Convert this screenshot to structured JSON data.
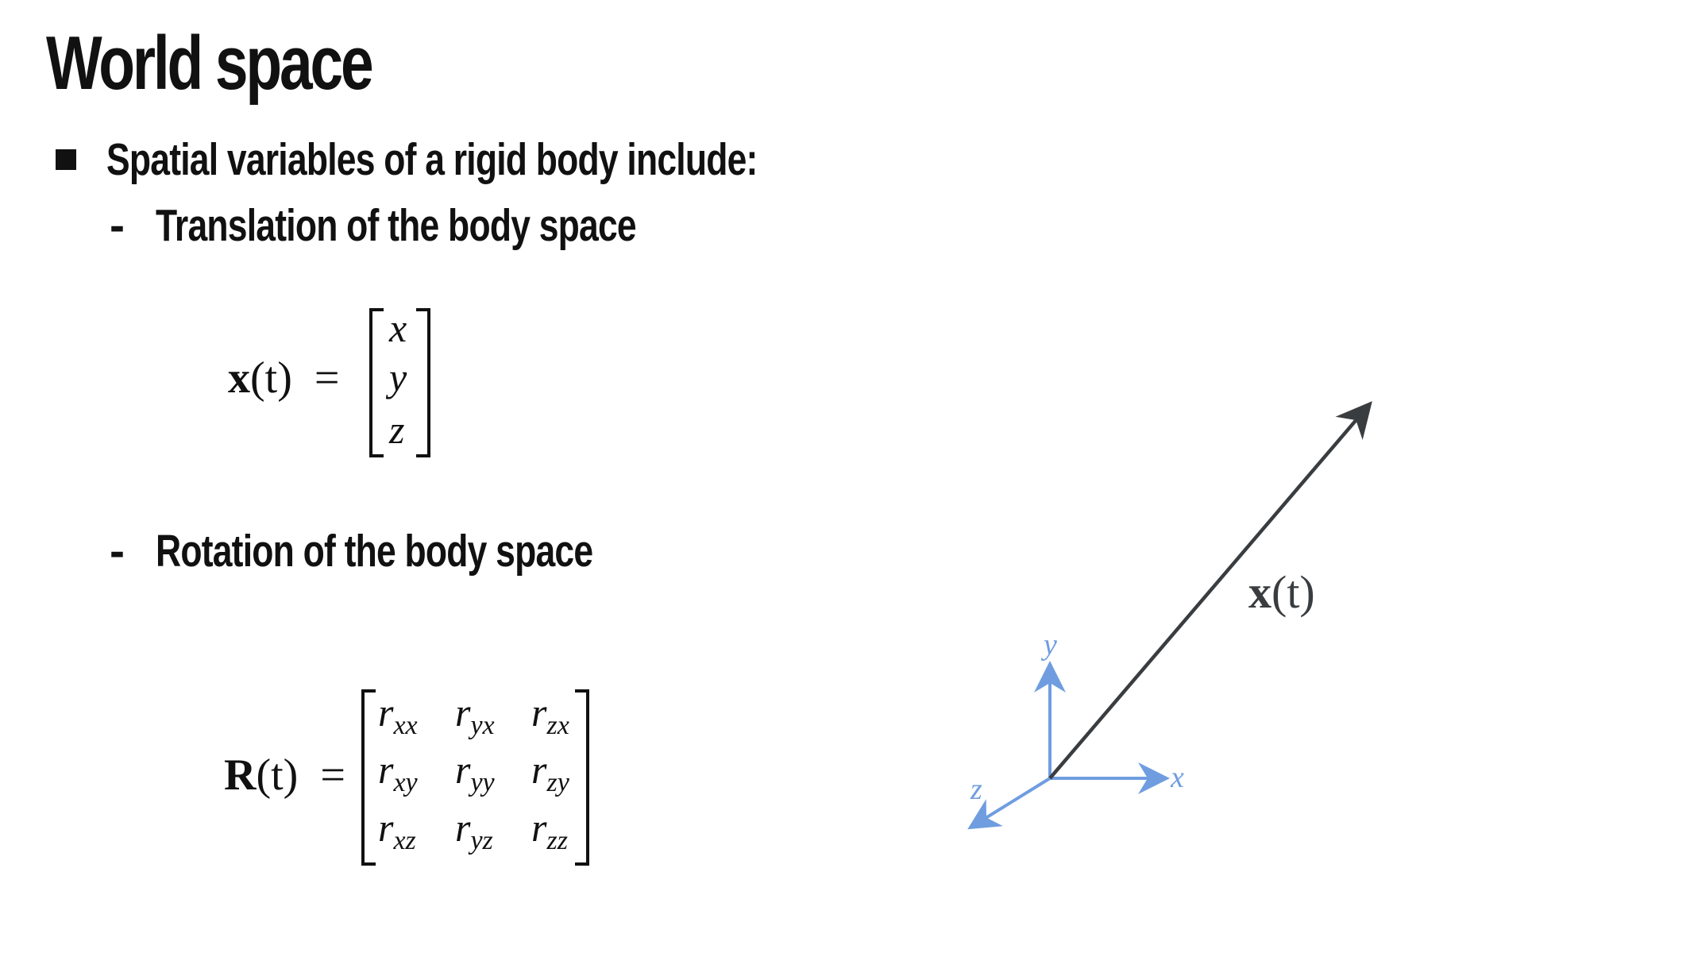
{
  "slide": {
    "title": "World space",
    "bullet": "Spatial variables of a rigid body include:",
    "sub_items": [
      {
        "label": "Translation of the body space"
      },
      {
        "label": "Rotation of the body space"
      }
    ],
    "dash": "-"
  },
  "translation_eq": {
    "lhs_var": "x",
    "lhs_arg": "(t)",
    "equals": "=",
    "vector": [
      "x",
      "y",
      "z"
    ]
  },
  "rotation_eq": {
    "lhs_var": "R",
    "lhs_arg": "(t)",
    "equals": "=",
    "matrix": [
      [
        {
          "r": "r",
          "s": "xx"
        },
        {
          "r": "r",
          "s": "yx"
        },
        {
          "r": "r",
          "s": "zx"
        }
      ],
      [
        {
          "r": "r",
          "s": "xy"
        },
        {
          "r": "r",
          "s": "yy"
        },
        {
          "r": "r",
          "s": "zy"
        }
      ],
      [
        {
          "r": "r",
          "s": "xz"
        },
        {
          "r": "r",
          "s": "yz"
        },
        {
          "r": "r",
          "s": "zz"
        }
      ]
    ]
  },
  "diagram": {
    "vector_label_var": "x",
    "vector_label_arg": "(t)",
    "axis_x": "x",
    "axis_y": "y",
    "axis_z": "z",
    "axis_color": "#6f9de0",
    "vector_color": "#3a3d40"
  }
}
